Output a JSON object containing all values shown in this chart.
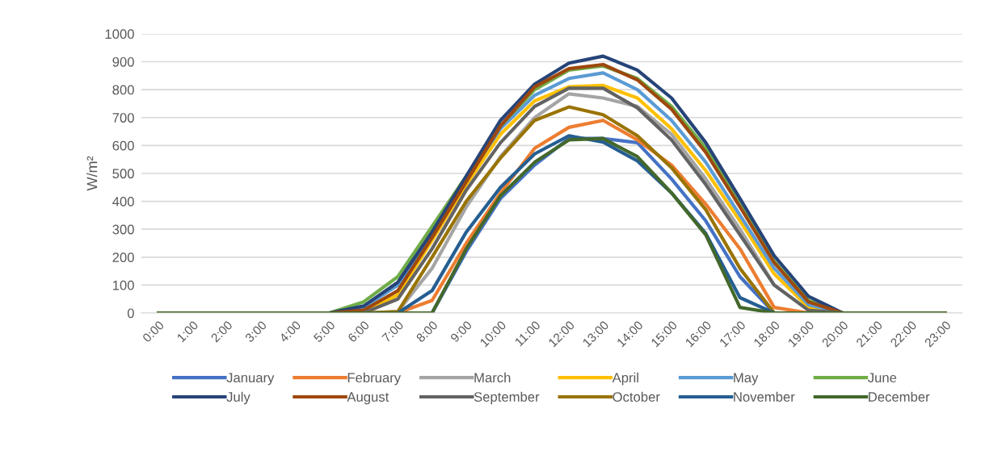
{
  "chart_data": {
    "type": "line",
    "ylabel": "W/m²",
    "categories": [
      "0:00",
      "1:00",
      "2:00",
      "3:00",
      "4:00",
      "5:00",
      "6:00",
      "7:00",
      "8:00",
      "9:00",
      "10:00",
      "11:00",
      "12:00",
      "13:00",
      "14:00",
      "15:00",
      "16:00",
      "17:00",
      "18:00",
      "19:00",
      "20:00",
      "21:00",
      "22:00",
      "23:00"
    ],
    "ylim": [
      0,
      1000
    ],
    "yticks": [
      0,
      100,
      200,
      300,
      400,
      500,
      600,
      700,
      800,
      900,
      1000
    ],
    "grid": "y",
    "legend": "bottom",
    "marker": "none",
    "line_style": "solid",
    "series": [
      {
        "name": "January",
        "color": "#4472c4",
        "values": [
          null,
          null,
          null,
          null,
          null,
          null,
          null,
          null,
          0,
          220,
          410,
          530,
          625,
          625,
          610,
          480,
          330,
          130,
          0,
          null,
          null,
          null,
          null,
          null
        ]
      },
      {
        "name": "February",
        "color": "#ed7d31",
        "values": [
          null,
          null,
          null,
          null,
          null,
          null,
          null,
          0,
          45,
          250,
          430,
          590,
          665,
          690,
          620,
          530,
          390,
          230,
          20,
          0,
          null,
          null,
          null,
          null
        ]
      },
      {
        "name": "March",
        "color": "#a5a5a5",
        "values": [
          null,
          null,
          null,
          null,
          null,
          null,
          0,
          5,
          160,
          380,
          560,
          700,
          785,
          770,
          740,
          640,
          480,
          300,
          100,
          10,
          0,
          null,
          null,
          null
        ]
      },
      {
        "name": "April",
        "color": "#ffc000",
        "values": [
          null,
          null,
          null,
          null,
          null,
          0,
          5,
          65,
          260,
          460,
          640,
          760,
          810,
          815,
          770,
          660,
          510,
          330,
          140,
          20,
          0,
          null,
          null,
          null
        ]
      },
      {
        "name": "May",
        "color": "#5b9bd5",
        "values": [
          null,
          null,
          null,
          null,
          null,
          0,
          20,
          100,
          280,
          480,
          660,
          780,
          840,
          860,
          800,
          690,
          540,
          350,
          160,
          30,
          0,
          null,
          null,
          null
        ]
      },
      {
        "name": "June",
        "color": "#70ad47",
        "values": [
          null,
          null,
          null,
          null,
          null,
          0,
          40,
          130,
          310,
          490,
          670,
          800,
          870,
          885,
          840,
          740,
          590,
          390,
          185,
          45,
          0,
          null,
          null,
          null
        ]
      },
      {
        "name": "July",
        "color": "#264478",
        "values": [
          null,
          null,
          null,
          null,
          null,
          0,
          25,
          110,
          290,
          490,
          690,
          820,
          895,
          920,
          870,
          770,
          610,
          410,
          205,
          60,
          0,
          null,
          null,
          null
        ]
      },
      {
        "name": "August",
        "color": "#9e480e",
        "values": [
          null,
          null,
          null,
          null,
          null,
          0,
          10,
          80,
          270,
          470,
          670,
          810,
          875,
          890,
          835,
          730,
          575,
          380,
          180,
          40,
          0,
          null,
          null,
          null
        ]
      },
      {
        "name": "September",
        "color": "#636363",
        "values": [
          null,
          null,
          null,
          null,
          null,
          null,
          0,
          50,
          230,
          440,
          610,
          740,
          805,
          805,
          735,
          620,
          460,
          280,
          100,
          10,
          0,
          null,
          null,
          null
        ]
      },
      {
        "name": "October",
        "color": "#997300",
        "values": [
          null,
          null,
          null,
          null,
          null,
          null,
          0,
          5,
          200,
          400,
          555,
          690,
          738,
          710,
          635,
          520,
          370,
          160,
          0,
          null,
          null,
          null,
          null,
          null
        ]
      },
      {
        "name": "November",
        "color": "#255e91",
        "values": [
          null,
          null,
          null,
          null,
          null,
          null,
          null,
          0,
          80,
          290,
          450,
          570,
          635,
          612,
          545,
          430,
          285,
          55,
          0,
          null,
          null,
          null,
          null,
          null
        ]
      },
      {
        "name": "December",
        "color": "#43682b",
        "values": [
          0,
          0,
          0,
          0,
          0,
          0,
          0,
          0,
          0,
          230,
          420,
          540,
          620,
          625,
          560,
          430,
          280,
          20,
          0,
          0,
          0,
          0,
          0,
          0
        ]
      }
    ]
  }
}
